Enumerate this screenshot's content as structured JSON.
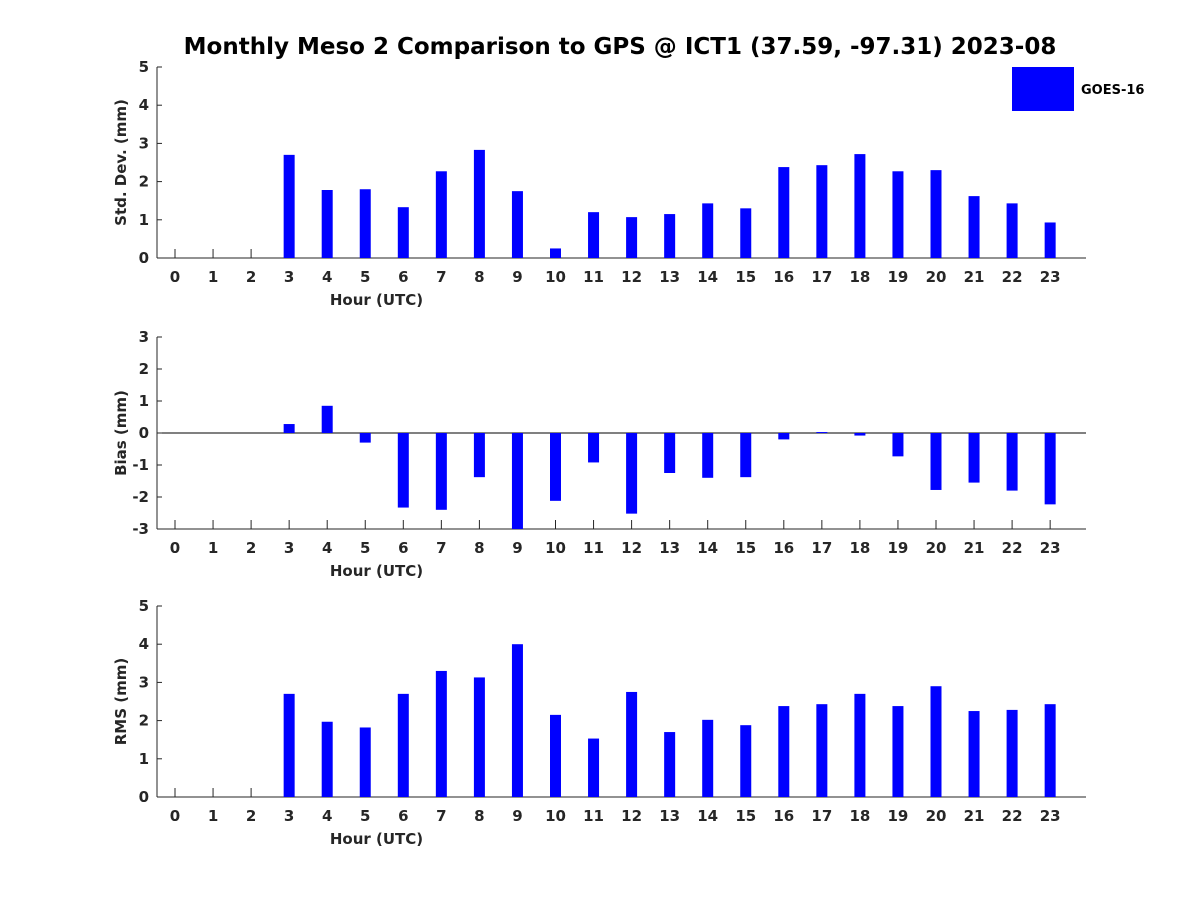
{
  "title": "Monthly Meso 2 Comparison to GPS @ ICT1 (37.59, -97.31) 2023-08",
  "legend": {
    "label": "GOES-16",
    "color": "#0000ff"
  },
  "colors": {
    "bar": "#0000ff",
    "axis": "#262626",
    "background": "#ffffff"
  },
  "chart_data": [
    {
      "type": "bar",
      "ylabel": "Std. Dev. (mm)",
      "xlabel": "Hour (UTC)",
      "categories": [
        "0",
        "1",
        "2",
        "3",
        "4",
        "5",
        "6",
        "7",
        "8",
        "9",
        "10",
        "11",
        "12",
        "13",
        "14",
        "15",
        "16",
        "17",
        "18",
        "19",
        "20",
        "21",
        "22",
        "23"
      ],
      "series": [
        {
          "name": "GOES-16",
          "values": [
            null,
            null,
            null,
            2.7,
            1.78,
            1.8,
            1.33,
            2.27,
            2.83,
            1.75,
            0.25,
            1.2,
            1.07,
            1.15,
            1.43,
            1.3,
            2.38,
            2.43,
            2.72,
            2.27,
            2.3,
            1.62,
            1.43,
            0.93
          ]
        }
      ],
      "ylim": [
        0,
        5
      ],
      "yticks": [
        0,
        1,
        2,
        3,
        4,
        5
      ],
      "legend_position": "top-right",
      "grid": false
    },
    {
      "type": "bar",
      "ylabel": "Bias (mm)",
      "xlabel": "Hour (UTC)",
      "categories": [
        "0",
        "1",
        "2",
        "3",
        "4",
        "5",
        "6",
        "7",
        "8",
        "9",
        "10",
        "11",
        "12",
        "13",
        "14",
        "15",
        "16",
        "17",
        "18",
        "19",
        "20",
        "21",
        "22",
        "23"
      ],
      "series": [
        {
          "name": "GOES-16",
          "values": [
            null,
            null,
            null,
            0.28,
            0.85,
            -0.3,
            -2.33,
            -2.4,
            -1.38,
            -3.0,
            -2.12,
            -0.92,
            -2.52,
            -1.25,
            -1.4,
            -1.38,
            -0.2,
            0.03,
            -0.08,
            -0.73,
            -1.78,
            -1.55,
            -1.8,
            -2.23
          ]
        }
      ],
      "ylim": [
        -3,
        3
      ],
      "yticks": [
        -3,
        -2,
        -1,
        0,
        1,
        2,
        3
      ],
      "grid": false
    },
    {
      "type": "bar",
      "ylabel": "RMS (mm)",
      "xlabel": "Hour (UTC)",
      "categories": [
        "0",
        "1",
        "2",
        "3",
        "4",
        "5",
        "6",
        "7",
        "8",
        "9",
        "10",
        "11",
        "12",
        "13",
        "14",
        "15",
        "16",
        "17",
        "18",
        "19",
        "20",
        "21",
        "22",
        "23"
      ],
      "series": [
        {
          "name": "GOES-16",
          "values": [
            null,
            null,
            null,
            2.7,
            1.97,
            1.82,
            2.7,
            3.3,
            3.13,
            4.0,
            2.15,
            1.53,
            2.75,
            1.7,
            2.02,
            1.88,
            2.38,
            2.43,
            2.7,
            2.38,
            2.9,
            2.25,
            2.28,
            2.43
          ]
        }
      ],
      "ylim": [
        0,
        5
      ],
      "yticks": [
        0,
        1,
        2,
        3,
        4,
        5
      ],
      "grid": false
    }
  ]
}
